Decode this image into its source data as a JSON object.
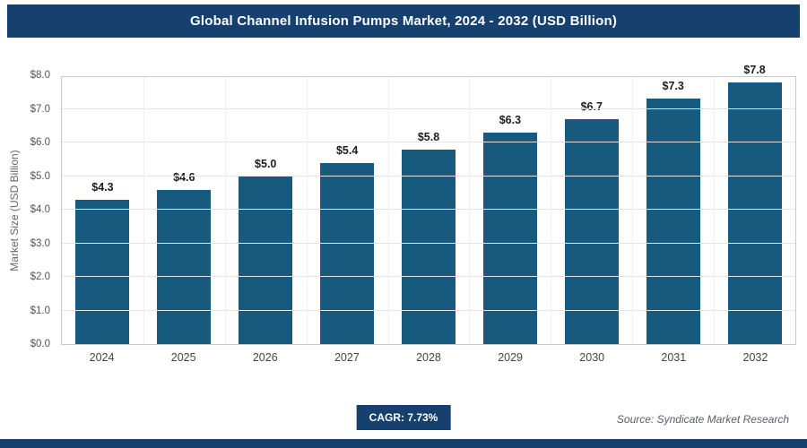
{
  "header": {
    "title": "Global Channel Infusion Pumps Market, 2024 - 2032 (USD Billion)"
  },
  "chart_data": {
    "type": "bar",
    "title": "Global Channel Infusion Pumps Market, 2024 - 2032 (USD Billion)",
    "categories": [
      "2024",
      "2025",
      "2026",
      "2027",
      "2028",
      "2029",
      "2030",
      "2031",
      "2032"
    ],
    "values": [
      4.3,
      4.6,
      5.0,
      5.4,
      5.8,
      6.3,
      6.7,
      7.3,
      7.8
    ],
    "value_labels": [
      "$4.3",
      "$4.6",
      "$5.0",
      "$5.4",
      "$5.8",
      "$6.3",
      "$6.7",
      "$7.3",
      "$7.8"
    ],
    "xlabel": "",
    "ylabel": "Market Size (USD Billion)",
    "ylim": [
      0,
      8
    ],
    "ytick_step": 1,
    "ytick_labels": [
      "$0.0",
      "$1.0",
      "$2.0",
      "$3.0",
      "$4.0",
      "$5.0",
      "$6.0",
      "$7.0",
      "$8.0"
    ],
    "grid": true,
    "legend": "none"
  },
  "footer": {
    "cagr": "CAGR: 7.73%",
    "source": "Source: Syndicate Market Research"
  },
  "colors": {
    "navy": "#16406e",
    "bar": "#175a7e",
    "gridline": "#e4e4e4"
  }
}
